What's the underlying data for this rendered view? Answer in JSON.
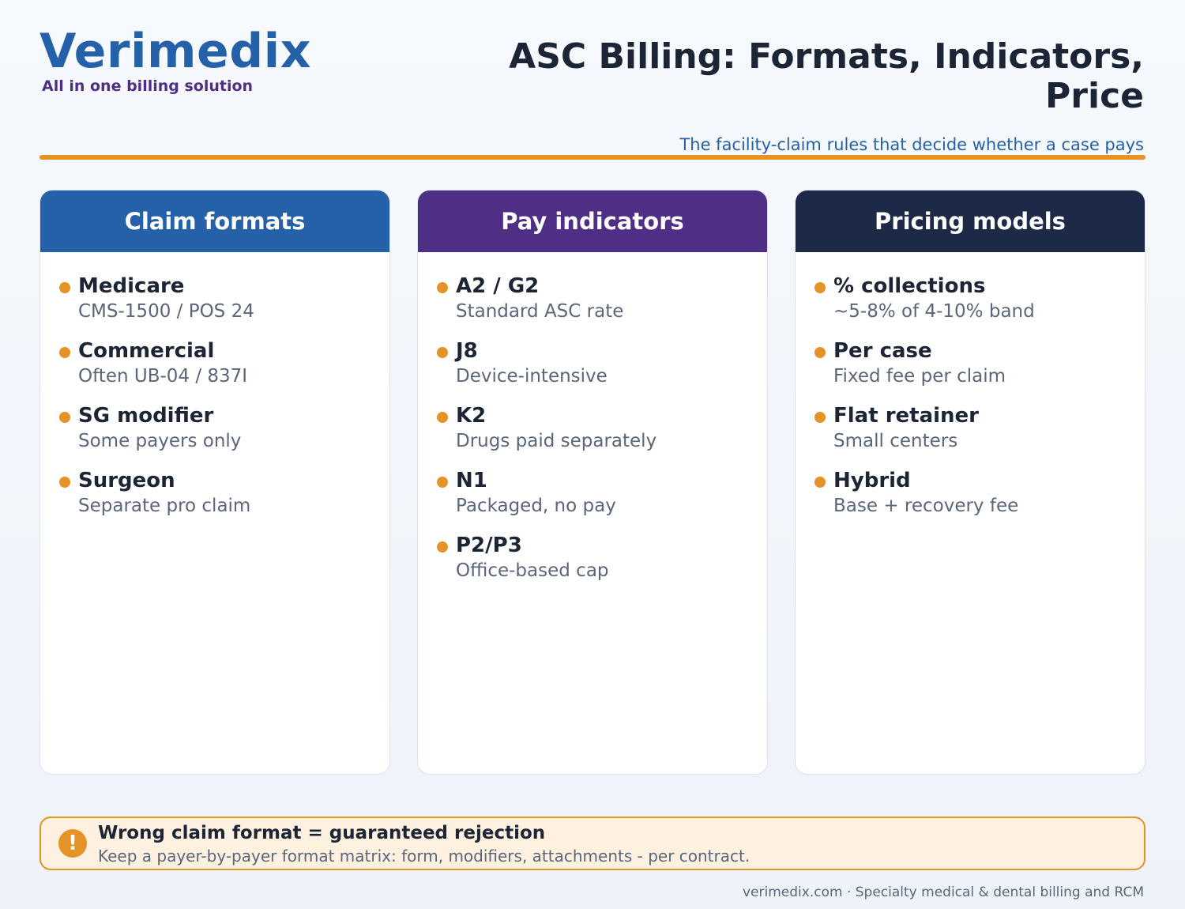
{
  "brand": {
    "name": "Verimedix",
    "tagline": "All in one billing solution"
  },
  "header": {
    "title": "ASC Billing: Formats, Indicators, Price",
    "subtitle": "The facility-claim rules that decide whether a case pays"
  },
  "colors": {
    "brand_blue": "#2461a8",
    "brand_purple": "#4f2f86",
    "navy": "#1c2a48",
    "accent_orange": "#e59227"
  },
  "cards": [
    {
      "title": "Claim formats",
      "color": "#2461a8",
      "items": [
        {
          "title": "Medicare",
          "desc": "CMS-1500 / POS 24"
        },
        {
          "title": "Commercial",
          "desc": "Often UB-04 / 837I"
        },
        {
          "title": "SG modifier",
          "desc": "Some payers only"
        },
        {
          "title": "Surgeon",
          "desc": "Separate pro claim"
        }
      ]
    },
    {
      "title": "Pay indicators",
      "color": "#4f2f86",
      "items": [
        {
          "title": "A2 / G2",
          "desc": "Standard ASC rate"
        },
        {
          "title": "J8",
          "desc": "Device-intensive"
        },
        {
          "title": "K2",
          "desc": "Drugs paid separately"
        },
        {
          "title": "N1",
          "desc": "Packaged, no pay"
        },
        {
          "title": "P2/P3",
          "desc": "Office-based cap"
        }
      ]
    },
    {
      "title": "Pricing models",
      "color": "#1c2a48",
      "items": [
        {
          "title": "% collections",
          "desc": "~5-8% of 4-10% band"
        },
        {
          "title": "Per case",
          "desc": "Fixed fee per claim"
        },
        {
          "title": "Flat retainer",
          "desc": "Small centers"
        },
        {
          "title": "Hybrid",
          "desc": "Base + recovery fee"
        }
      ]
    }
  ],
  "callout": {
    "icon": "alert-icon",
    "icon_glyph": "!",
    "title": "Wrong claim format = guaranteed rejection",
    "text": "Keep a payer-by-payer format matrix: form, modifiers, attachments - per contract."
  },
  "footer": {
    "text": "verimedix.com · Specialty medical & dental billing and RCM"
  }
}
